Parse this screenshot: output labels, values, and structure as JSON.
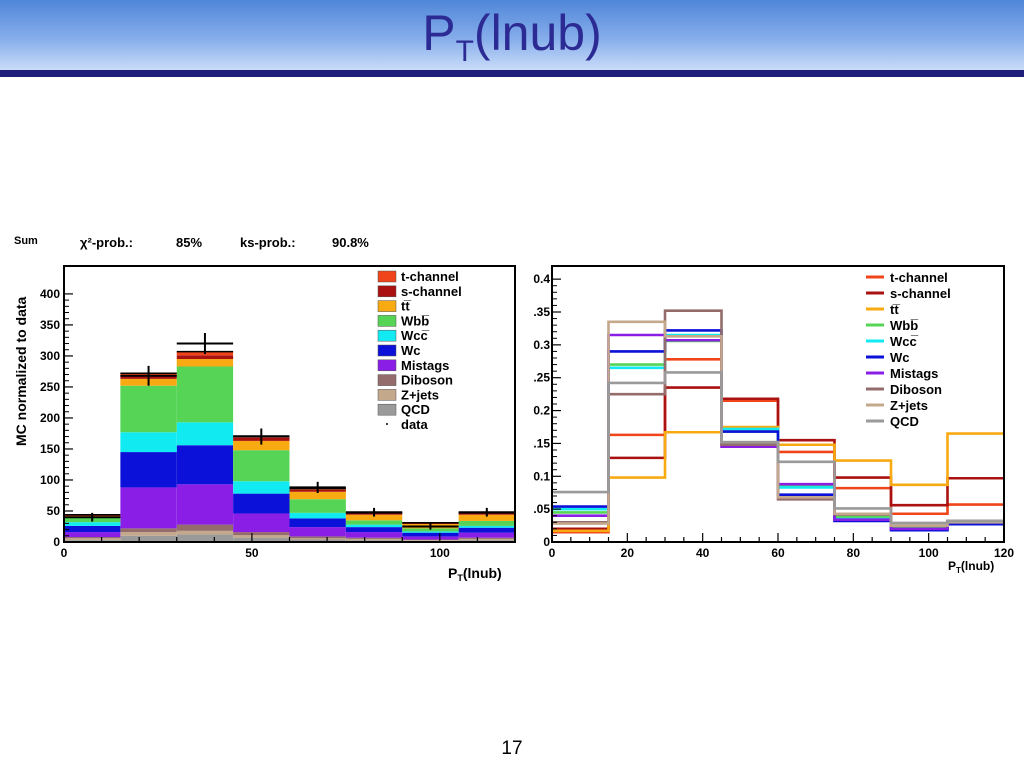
{
  "slide": {
    "title_main": "P",
    "title_sub": "T",
    "title_rest": "(lnub)",
    "page_number": "17",
    "title_color": "#2c2a93",
    "rule_color": "#1d1e7a"
  },
  "stats": {
    "sum_label": "Sum",
    "chi2_label": "χ²-prob.:",
    "chi2_value": "85%",
    "ks_label": "ks-prob.:",
    "ks_value": "90.8%"
  },
  "legend_entries": [
    {
      "label": "t-channel",
      "color": "#f0451a"
    },
    {
      "label": "s-channel",
      "color": "#aa1111"
    },
    {
      "label": "tt̅",
      "color": "#f8aa12"
    },
    {
      "label": "Wbb̅",
      "color": "#55d455"
    },
    {
      "label": "Wcc̅",
      "color": "#12eaf2"
    },
    {
      "label": "Wc",
      "color": "#0b11d8"
    },
    {
      "label": "Mistags",
      "color": "#8a1ee6"
    },
    {
      "label": "Diboson",
      "color": "#946c6c"
    },
    {
      "label": "Z+jets",
      "color": "#c4a88c"
    },
    {
      "label": "QCD",
      "color": "#9a9a9a"
    }
  ],
  "chart_data": [
    {
      "type": "bar",
      "subtype": "stacked-histogram",
      "bin_edges": [
        0,
        15,
        30,
        45,
        60,
        75,
        90,
        105,
        120
      ],
      "ylabel": "MC normalized to data",
      "xlabel_main": "P",
      "xlabel_sub": "T",
      "xlabel_rest": "(lnub)",
      "xlim": [
        0,
        120
      ],
      "ylim": [
        0,
        445
      ],
      "x_ticks": [
        "0",
        "50",
        "100"
      ],
      "x_tick_values": [
        0,
        50,
        100
      ],
      "y_ticks": [
        "0",
        "50",
        "100",
        "150",
        "200",
        "250",
        "300",
        "350",
        "400"
      ],
      "y_tick_values": [
        0,
        50,
        100,
        150,
        200,
        250,
        300,
        350,
        400
      ],
      "legend_data_label": "data",
      "series": [
        {
          "name": "QCD",
          "values": [
            3,
            10,
            12,
            7,
            4,
            3,
            2,
            3
          ]
        },
        {
          "name": "Z+jets",
          "values": [
            3,
            6,
            6,
            4,
            2,
            2,
            1,
            2
          ]
        },
        {
          "name": "Diboson",
          "values": [
            2,
            6,
            10,
            5,
            3,
            2,
            1,
            2
          ]
        },
        {
          "name": "Mistags",
          "values": [
            8,
            66,
            65,
            30,
            15,
            9,
            5,
            8
          ]
        },
        {
          "name": "Wc",
          "values": [
            10,
            57,
            63,
            32,
            14,
            8,
            6,
            8
          ]
        },
        {
          "name": "Wcc̅",
          "values": [
            6,
            32,
            37,
            20,
            9,
            4,
            2,
            3
          ]
        },
        {
          "name": "Wbb̅",
          "values": [
            8,
            75,
            90,
            50,
            22,
            7,
            5,
            8
          ]
        },
        {
          "name": "tt̅",
          "values": [
            2,
            11,
            12,
            15,
            12,
            9,
            7,
            10
          ]
        },
        {
          "name": "s-channel",
          "values": [
            1,
            5,
            6,
            5,
            3,
            2,
            1,
            2
          ]
        },
        {
          "name": "t-channel",
          "values": [
            1,
            4,
            6,
            3,
            2,
            1,
            1,
            1
          ]
        }
      ],
      "data_points": {
        "name": "data",
        "x": [
          7.5,
          22.5,
          37.5,
          52.5,
          67.5,
          82.5,
          97.5,
          112.5
        ],
        "y": [
          40,
          268,
          320,
          170,
          88,
          48,
          25,
          48
        ],
        "yerr": [
          7,
          16,
          17,
          13,
          9,
          7,
          5,
          7
        ]
      }
    },
    {
      "type": "line",
      "subtype": "step-histogram",
      "bin_edges": [
        0,
        15,
        30,
        45,
        60,
        75,
        90,
        105,
        120
      ],
      "xlabel_main": "P",
      "xlabel_sub": "T",
      "xlabel_rest": "(lnub)",
      "xlim": [
        0,
        120
      ],
      "ylim": [
        0,
        0.42
      ],
      "x_ticks": [
        "0",
        "20",
        "40",
        "60",
        "80",
        "100",
        "120"
      ],
      "x_tick_values": [
        0,
        20,
        40,
        60,
        80,
        100,
        120
      ],
      "y_ticks": [
        "0",
        ".05",
        "0.1",
        ".15",
        "0.2",
        ".25",
        "0.3",
        ".35",
        "0.4"
      ],
      "y_tick_values": [
        0,
        0.05,
        0.1,
        0.15,
        0.2,
        0.25,
        0.3,
        0.35,
        0.4
      ],
      "series": [
        {
          "name": "t-channel",
          "values": [
            0.015,
            0.163,
            0.278,
            0.215,
            0.137,
            0.082,
            0.043,
            0.057
          ]
        },
        {
          "name": "s-channel",
          "values": [
            0.02,
            0.128,
            0.235,
            0.218,
            0.155,
            0.098,
            0.056,
            0.097
          ]
        },
        {
          "name": "tt̅",
          "values": [
            0.017,
            0.098,
            0.167,
            0.175,
            0.148,
            0.124,
            0.087,
            0.165
          ]
        },
        {
          "name": "Wbb̅",
          "values": [
            0.045,
            0.27,
            0.306,
            0.168,
            0.085,
            0.038,
            0.022,
            0.032
          ]
        },
        {
          "name": "Wcc̅",
          "values": [
            0.05,
            0.265,
            0.315,
            0.172,
            0.083,
            0.035,
            0.02,
            0.028
          ]
        },
        {
          "name": "Wc",
          "values": [
            0.054,
            0.29,
            0.322,
            0.168,
            0.072,
            0.032,
            0.018,
            0.027
          ]
        },
        {
          "name": "Mistags",
          "values": [
            0.04,
            0.315,
            0.307,
            0.145,
            0.088,
            0.034,
            0.02,
            0.031
          ]
        },
        {
          "name": "Diboson",
          "values": [
            0.03,
            0.225,
            0.352,
            0.148,
            0.065,
            0.042,
            0.025,
            0.032
          ]
        },
        {
          "name": "Z+jets",
          "values": [
            0.028,
            0.335,
            0.313,
            0.152,
            0.068,
            0.043,
            0.025,
            0.03
          ]
        },
        {
          "name": "QCD",
          "values": [
            0.076,
            0.242,
            0.258,
            0.152,
            0.122,
            0.051,
            0.029,
            0.032
          ]
        }
      ]
    }
  ]
}
